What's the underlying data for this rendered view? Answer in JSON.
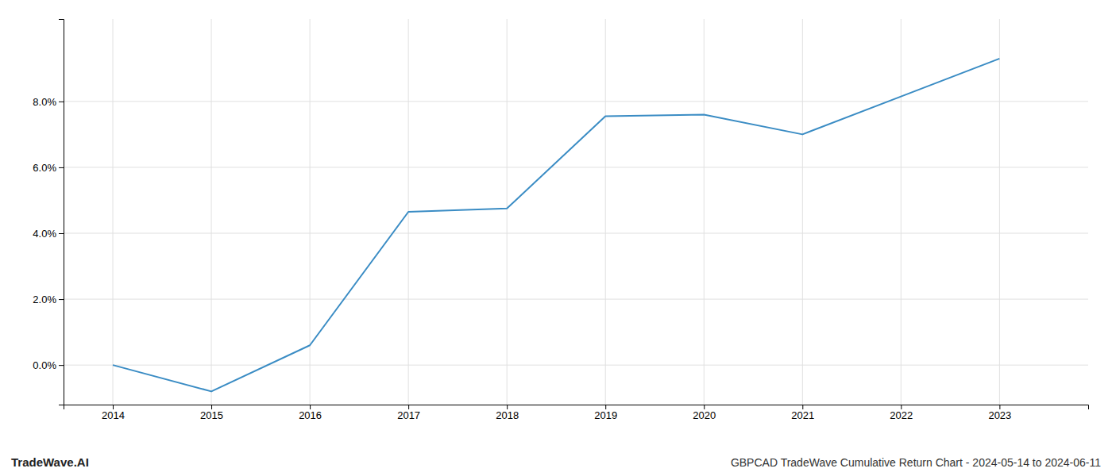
{
  "chart_data": {
    "type": "line",
    "title": "GBPCAD TradeWave Cumulative Return Chart - 2024-05-14 to 2024-06-11",
    "annotations": [
      "TradeWave.AI"
    ],
    "x": [
      2014,
      2015,
      2016,
      2017,
      2018,
      2019,
      2020,
      2021,
      2022,
      2023
    ],
    "values": [
      0.0,
      -0.8,
      0.6,
      4.65,
      4.75,
      7.55,
      7.6,
      7.0,
      8.15,
      9.3
    ],
    "color": "#3a8cc4",
    "xlim": [
      2013.5,
      2023.9
    ],
    "ylim": [
      -1.2,
      10.5
    ],
    "xticks": [
      2014,
      2015,
      2016,
      2017,
      2018,
      2019,
      2020,
      2021,
      2022,
      2023
    ],
    "yticks": [
      {
        "value": 0.0,
        "label": "0.0%"
      },
      {
        "value": 2.0,
        "label": "2.0%"
      },
      {
        "value": 4.0,
        "label": "4.0%"
      },
      {
        "value": 6.0,
        "label": "6.0%"
      },
      {
        "value": 8.0,
        "label": "8.0%"
      }
    ],
    "grid": true
  }
}
